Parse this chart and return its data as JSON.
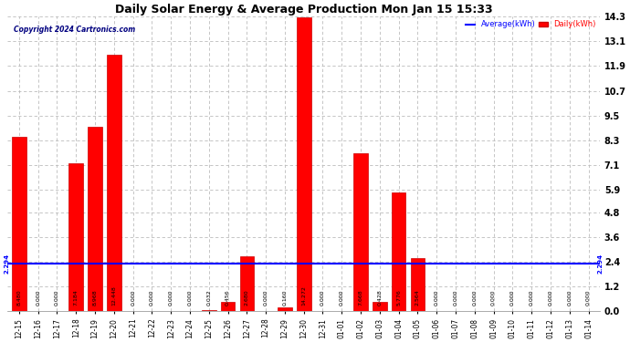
{
  "title": "Daily Solar Energy & Average Production Mon Jan 15 15:33",
  "copyright": "Copyright 2024 Cartronics.com",
  "legend_average": "Average(kWh)",
  "legend_daily": "Daily(kWh)",
  "average_value": 2.294,
  "average_label": "2.294",
  "categories": [
    "12-15",
    "12-16",
    "12-17",
    "12-18",
    "12-19",
    "12-20",
    "12-21",
    "12-22",
    "12-23",
    "12-24",
    "12-25",
    "12-26",
    "12-27",
    "12-28",
    "12-29",
    "12-30",
    "12-31",
    "01-01",
    "01-02",
    "01-03",
    "01-04",
    "01-05",
    "01-06",
    "01-07",
    "01-08",
    "01-09",
    "01-10",
    "01-11",
    "01-12",
    "01-13",
    "01-14"
  ],
  "values": [
    8.48,
    0.0,
    0.0,
    7.184,
    8.968,
    12.448,
    0.0,
    0.0,
    0.0,
    0.0,
    0.032,
    0.456,
    2.68,
    0.0,
    0.16,
    14.272,
    0.0,
    0.0,
    7.668,
    0.428,
    5.776,
    2.564,
    0.0,
    0.0,
    0.0,
    0.0,
    0.0,
    0.0,
    0.0,
    0.0,
    0.0
  ],
  "ylim": [
    0.0,
    14.3
  ],
  "yticks": [
    0.0,
    1.2,
    2.4,
    3.6,
    4.8,
    5.9,
    7.1,
    8.3,
    9.5,
    10.7,
    11.9,
    13.1,
    14.3
  ],
  "bar_color": "#ff0000",
  "bar_edge_color": "#cc0000",
  "average_line_color": "#0000ff",
  "background_color": "#ffffff",
  "grid_color": "#bbbbbb",
  "title_color": "#000000",
  "value_label_color": "#000000",
  "tick_label_color": "#000000",
  "copyright_color": "#000080",
  "legend_avg_color": "#0000ff",
  "legend_daily_color": "#ff0000"
}
